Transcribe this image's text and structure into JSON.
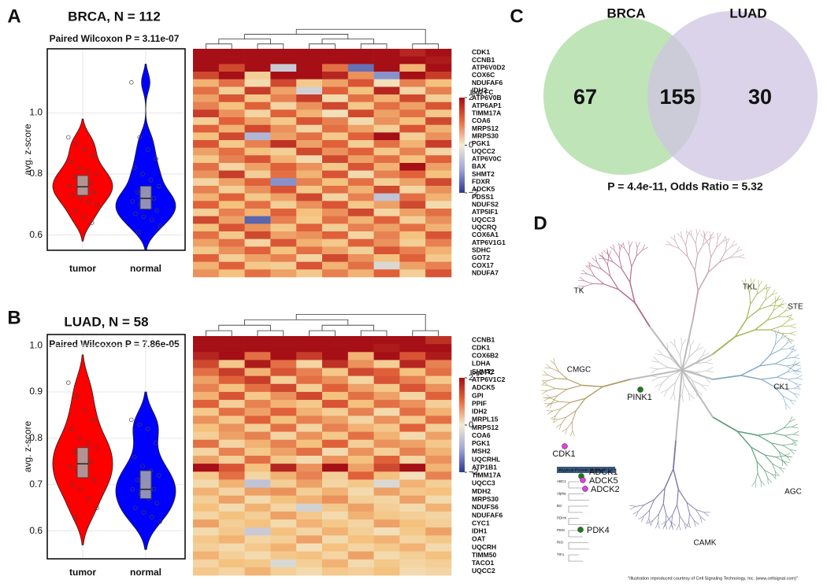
{
  "chart_data": [
    {
      "type": "violin",
      "panel_label": "A",
      "title": "BRCA, N = 112",
      "subtitle": "Paired Wilcoxon P = 3.11e-07",
      "y_label": "avg. z-score",
      "ylim": [
        0.55,
        1.21
      ],
      "yticks": [
        0.6,
        0.8,
        {
          "value": 1,
          "label": "1.0"
        }
      ],
      "grid": true,
      "series": [
        {
          "name": "tumor",
          "color": "#ff0000",
          "box": {
            "q1": 0.73,
            "median": 0.758,
            "q3": 0.795
          },
          "values": [
            0.92,
            0.9,
            0.88,
            0.86,
            0.84,
            0.82,
            0.81,
            0.8,
            0.79,
            0.78,
            0.77,
            0.76,
            0.76,
            0.75,
            0.74,
            0.73,
            0.72,
            0.71,
            0.7,
            0.68,
            0.66,
            0.64
          ]
        },
        {
          "name": "normal",
          "color": "#0000ff",
          "box": {
            "q1": 0.685,
            "median": 0.72,
            "q3": 0.76
          },
          "values": [
            1.1,
            0.92,
            0.88,
            0.85,
            0.82,
            0.8,
            0.78,
            0.76,
            0.74,
            0.73,
            0.72,
            0.71,
            0.7,
            0.69,
            0.68,
            0.67,
            0.66,
            0.65,
            0.63,
            0.61
          ]
        }
      ]
    },
    {
      "type": "heatmap",
      "colorbar_label": "log2 FC",
      "clim": [
        -2,
        2
      ],
      "colorbar_ticks": [
        2,
        0,
        {
          "value": -2,
          "label": "−2"
        }
      ],
      "rows": [
        "CDK1",
        "CCNB1",
        "ATP6V0D2",
        "COX6C",
        "NDUFAF6",
        "IDH2",
        "ATP6V0B",
        "ATP6AP1",
        "TIMM17A",
        "COA6",
        "MRPS12",
        "MRPS30",
        "PGK1",
        "UQCC2",
        "ATP6V0C",
        "BAX",
        "SHMT2",
        "FDXR",
        "ADCK5",
        "PDSS1",
        "NDUFS2",
        "ATP5IF1",
        "UQCC3",
        "UQCRQ",
        "COX6A1",
        "ATP6V1G1",
        "SDHC",
        "GOT2",
        "COX17",
        "NDUFA7"
      ],
      "values": [
        [
          2,
          2,
          2,
          2,
          2,
          2,
          2,
          2,
          1.8,
          2
        ],
        [
          2,
          2,
          2,
          2,
          2,
          2,
          2,
          2,
          2,
          1.9
        ],
        [
          2,
          1.5,
          2,
          -0.5,
          2,
          1.2,
          -1.5,
          2,
          0.8,
          2
        ],
        [
          1.5,
          2,
          0.5,
          2,
          2,
          1.8,
          1,
          -1.2,
          2,
          1.6
        ],
        [
          0.8,
          1.2,
          0.3,
          1.5,
          0.6,
          0.9,
          1.4,
          0.2,
          1.1,
          0.7
        ],
        [
          1.2,
          0.5,
          1.6,
          0.9,
          -0.4,
          1.3,
          0.7,
          1.8,
          0.4,
          1.1
        ],
        [
          0.9,
          1.4,
          0.6,
          1.1,
          1.6,
          0.3,
          1.2,
          0.8,
          1.5,
          0.5
        ],
        [
          1.1,
          0.7,
          1.3,
          0.4,
          1,
          1.5,
          0.6,
          1.2,
          0.9,
          1.4
        ],
        [
          1.6,
          1,
          0.4,
          1.3,
          0.8,
          0.2,
          1.5,
          0.9,
          1.2,
          0.6
        ],
        [
          0.5,
          1.3,
          0.9,
          0.6,
          1.4,
          1.1,
          0.3,
          1,
          0.7,
          1.5
        ],
        [
          1.3,
          0.8,
          1.5,
          1,
          0.4,
          1.2,
          0.9,
          0.5,
          1.4,
          0.8
        ],
        [
          0.7,
          1.5,
          -0.8,
          0.9,
          1.2,
          0.6,
          1.3,
          2,
          0.5,
          1
        ],
        [
          1.4,
          0.6,
          1.1,
          1.7,
          0.9,
          1.3,
          0.5,
          1.2,
          0.8,
          1.6
        ],
        [
          0.9,
          1.2,
          0.7,
          0.5,
          1.5,
          1,
          1.3,
          0.6,
          1.1,
          0.4
        ],
        [
          0.6,
          1.1,
          1.4,
          0.8,
          0.3,
          1.5,
          0.9,
          1.2,
          0.7,
          1.3
        ],
        [
          1.2,
          0.4,
          0.9,
          1.3,
          1,
          0.6,
          1.4,
          0.8,
          2,
          0.9
        ],
        [
          1,
          1.6,
          0.5,
          1.2,
          0.8,
          1.4,
          0.3,
          1.1,
          1.3,
          0.7
        ],
        [
          0.4,
          0.9,
          1.3,
          -1.2,
          1.1,
          0.7,
          1.2,
          0.5,
          0.9,
          1.5
        ],
        [
          1.1,
          0.5,
          1,
          1.4,
          0.6,
          1.2,
          0.8,
          1.5,
          0.4,
          1
        ],
        [
          0.8,
          1.3,
          0.6,
          0.9,
          1.5,
          0.4,
          1.1,
          -0.6,
          1.2,
          0.8
        ],
        [
          1.3,
          0.7,
          1.2,
          0.5,
          1,
          1.4,
          0.6,
          0.9,
          1.5,
          0.3
        ],
        [
          0.5,
          1.1,
          0.8,
          1.3,
          0.7,
          1,
          1.5,
          0.4,
          0.9,
          1.2
        ],
        [
          1.5,
          0.9,
          -1.6,
          1.1,
          0.6,
          1.2,
          0.8,
          1.3,
          0.5,
          1
        ],
        [
          0.7,
          1.4,
          1,
          0.6,
          1.3,
          0.5,
          1.1,
          0.9,
          1.2,
          0.8
        ],
        [
          1.2,
          0.6,
          1.5,
          0.9,
          1,
          1.3,
          0.4,
          1.1,
          0.7,
          1.4
        ],
        [
          0.9,
          1.2,
          0.4,
          1.4,
          0.8,
          0.6,
          1.3,
          1,
          0.5,
          1.1
        ],
        [
          0.6,
          1,
          1.3,
          0.7,
          1.2,
          0.9,
          0.5,
          1.4,
          1.1,
          0.8
        ],
        [
          1.3,
          0.5,
          0.9,
          1.1,
          0.4,
          1.5,
          1,
          0.7,
          1.3,
          0.6
        ],
        [
          0.8,
          1.3,
          0.6,
          0.5,
          1.4,
          0.8,
          1.2,
          -0.3,
          0.9,
          1.1
        ],
        [
          1,
          0.7,
          1.2,
          0.9,
          0.6,
          1.1,
          0.8,
          1.3,
          0.5,
          1.4
        ]
      ]
    },
    {
      "type": "violin",
      "panel_label": "B",
      "title": "LUAD, N = 58",
      "subtitle": "Paired Wilcoxon P = 7.86e-05",
      "y_label": "avg. z-score",
      "ylim": [
        0.54,
        1.024
      ],
      "yticks": [
        0.6,
        0.7,
        0.8,
        0.9,
        {
          "value": 1,
          "label": "1.0"
        }
      ],
      "grid": true,
      "series": [
        {
          "name": "tumor",
          "color": "#ff0000",
          "box": {
            "q1": 0.715,
            "median": 0.745,
            "q3": 0.78
          },
          "values": [
            0.92,
            0.89,
            0.86,
            0.84,
            0.82,
            0.8,
            0.79,
            0.78,
            0.77,
            0.76,
            0.75,
            0.74,
            0.73,
            0.72,
            0.71,
            0.7,
            0.69,
            0.67,
            0.65,
            0.63
          ]
        },
        {
          "name": "normal",
          "color": "#0000ff",
          "box": {
            "q1": 0.67,
            "median": 0.69,
            "q3": 0.73
          },
          "values": [
            0.84,
            0.83,
            0.82,
            0.79,
            0.76,
            0.74,
            0.73,
            0.72,
            0.71,
            0.7,
            0.69,
            0.69,
            0.68,
            0.67,
            0.66,
            0.65,
            0.64,
            0.63,
            0.62
          ]
        }
      ]
    },
    {
      "type": "heatmap",
      "colorbar_label": "log2 FC",
      "clim": [
        -2,
        2
      ],
      "colorbar_ticks": [
        2,
        0,
        {
          "value": -2,
          "label": "−2"
        }
      ],
      "rows": [
        "CCNB1",
        "CDK1",
        "COX6B2",
        "LDHA",
        "SHMT2",
        "ATP6V1C2",
        "ADCK5",
        "GPI",
        "PPIF",
        "IDH2",
        "MRPL15",
        "MRPS12",
        "COA6",
        "PGK1",
        "MSH2",
        "UQCRHL",
        "ATP1B1",
        "TIMM17A",
        "UQCC3",
        "MDH2",
        "MRPS30",
        "NDUFS6",
        "NDUFAF6",
        "CYC1",
        "IDH1",
        "OAT",
        "UQCRH",
        "TIMM50",
        "TACO1",
        "UQCC2"
      ],
      "values": [
        [
          2,
          2,
          2,
          2,
          2,
          2,
          2,
          2,
          2,
          1.7
        ],
        [
          2,
          2,
          2,
          2,
          2,
          2,
          2,
          1.9,
          2,
          2
        ],
        [
          1.8,
          2,
          1.2,
          2,
          1.6,
          2,
          0.8,
          2,
          1.4,
          1.9
        ],
        [
          1.5,
          0.6,
          1.9,
          1.2,
          0.4,
          1.7,
          1,
          0.5,
          1.8,
          1.1
        ],
        [
          1.2,
          1.6,
          0.8,
          1.4,
          1.1,
          0.6,
          1.5,
          1.3,
          0.7,
          1.2
        ],
        [
          0.9,
          1.3,
          1.6,
          0.5,
          1.2,
          1,
          0.4,
          1.4,
          1.1,
          0.6
        ],
        [
          1.1,
          0.7,
          1.2,
          1.5,
          0.5,
          1.3,
          0.9,
          0.6,
          1.4,
          1
        ],
        [
          0.8,
          1.4,
          0.6,
          1,
          1.5,
          0.7,
          1.2,
          0.9,
          0.4,
          1.3
        ],
        [
          1.3,
          0.5,
          1.1,
          0.8,
          0.6,
          1.4,
          0.7,
          1.2,
          1,
          0.5
        ],
        [
          0.6,
          1.2,
          0.9,
          1.3,
          0.8,
          0.5,
          1.1,
          0.3,
          1.2,
          0.8
        ],
        [
          1,
          0.6,
          1.3,
          0.7,
          1.1,
          0.9,
          0.4,
          1,
          0.6,
          1.2
        ],
        [
          0.7,
          1,
          0.5,
          1.2,
          0.4,
          1.1,
          0.8,
          0.6,
          1.3,
          0.5
        ],
        [
          0.5,
          0.9,
          1.1,
          0.4,
          1,
          0.6,
          1.2,
          0.8,
          0.3,
          0.9
        ],
        [
          1.2,
          0.4,
          0.8,
          1.1,
          0.7,
          1.3,
          0.5,
          1,
          0.9,
          0.6
        ],
        [
          0.4,
          1.1,
          0.6,
          0.9,
          1.2,
          0.3,
          1,
          0.5,
          1.1,
          0.8
        ],
        [
          0.9,
          0.5,
          1.2,
          0.6,
          0.3,
          1,
          0.7,
          1.3,
          0.4,
          1
        ],
        [
          2,
          1.4,
          0.7,
          1.8,
          1,
          2,
          0.9,
          1.5,
          2,
          0.8
        ],
        [
          0.6,
          1.2,
          0.4,
          0.8,
          1.1,
          0.5,
          1.3,
          0.7,
          0.2,
          1.1
        ],
        [
          0.3,
          0.8,
          -0.6,
          0.5,
          0.9,
          0.4,
          0.6,
          -0.3,
          0.8,
          0.5
        ],
        [
          0.8,
          0.4,
          0.9,
          1,
          0.5,
          0.8,
          0.3,
          0.9,
          0.6,
          0.7
        ],
        [
          0.5,
          0.9,
          0.3,
          0.7,
          0.8,
          1,
          0.5,
          0.4,
          0.9,
          0.3
        ],
        [
          0.7,
          0.3,
          0.8,
          0.4,
          -0.4,
          0.6,
          0.9,
          0.5,
          0.3,
          0.8
        ],
        [
          0.4,
          0.7,
          0.5,
          0.9,
          0.6,
          0.3,
          0.8,
          0.6,
          0.5,
          0.4
        ],
        [
          0.9,
          0.5,
          0.7,
          0.3,
          0.8,
          0.6,
          0.4,
          0.9,
          0.7,
          0.5
        ],
        [
          0.3,
          0.6,
          -0.5,
          0.7,
          0.4,
          0.8,
          0.5,
          0.2,
          0.6,
          0.9
        ],
        [
          0.6,
          0.8,
          0.4,
          0.5,
          0.9,
          0.3,
          0.7,
          0.8,
          0.4,
          0.6
        ],
        [
          0.5,
          0.3,
          0.6,
          0.8,
          0.2,
          0.7,
          0.4,
          0.6,
          0.8,
          0.3
        ],
        [
          0.8,
          0.5,
          0.3,
          0.6,
          0.7,
          0.4,
          0.9,
          0.3,
          0.5,
          0.7
        ],
        [
          0.4,
          0.7,
          0.6,
          -0.3,
          0.5,
          0.8,
          0.3,
          0.6,
          0.4,
          0.5
        ],
        [
          0.6,
          0.4,
          0.8,
          0.5,
          0.3,
          0.6,
          0.5,
          0.7,
          0.3,
          0.4
        ]
      ]
    },
    {
      "type": "venn",
      "panel_label": "C",
      "annotation": "P = 4.4e-11, Odds Ratio = 5.32",
      "sets": [
        {
          "name": "BRCA",
          "color": "#a8dba0"
        },
        {
          "name": "LUAD",
          "color": "#cfc4e2"
        }
      ],
      "values": [
        67,
        155,
        30
      ]
    }
  ],
  "kinome": {
    "panel_label": "D",
    "groups": [
      {
        "label": "TK",
        "color": "#b5668a"
      },
      {
        "label": "TKL",
        "color": "#c9a0b0"
      },
      {
        "label": "STE",
        "color": "#a3b04a"
      },
      {
        "label": "CK1",
        "color": "#7fa8c8"
      },
      {
        "label": "AGC",
        "color": "#5a9e78"
      },
      {
        "label": "CAMK",
        "color": "#7a78a8"
      },
      {
        "label": "CMGC",
        "color": "#b09a60"
      }
    ],
    "kinases": [
      {
        "label": "PINK1",
        "color": "#1e7a1e"
      },
      {
        "label": "CDK1",
        "color": "#e040e0"
      },
      {
        "label": "ADCK1",
        "color": "#1e7a1e"
      },
      {
        "label": "ADCK5",
        "color": "#e040e0"
      },
      {
        "label": "ADCK2",
        "color": "#e040e0"
      },
      {
        "label": "PDK4",
        "color": "#1e7a1e"
      }
    ],
    "atypical_title": "Atypical Protein Kinases",
    "atypical_families": [
      "ABC1",
      "Alpha",
      "Bcr",
      "PDHK",
      "PIKK",
      "RIO",
      "TIF1"
    ],
    "credit": "\"Illustration reproduced courtesy of Cell Signaling Technology, Inc. (www.cellsignal.com)\""
  }
}
